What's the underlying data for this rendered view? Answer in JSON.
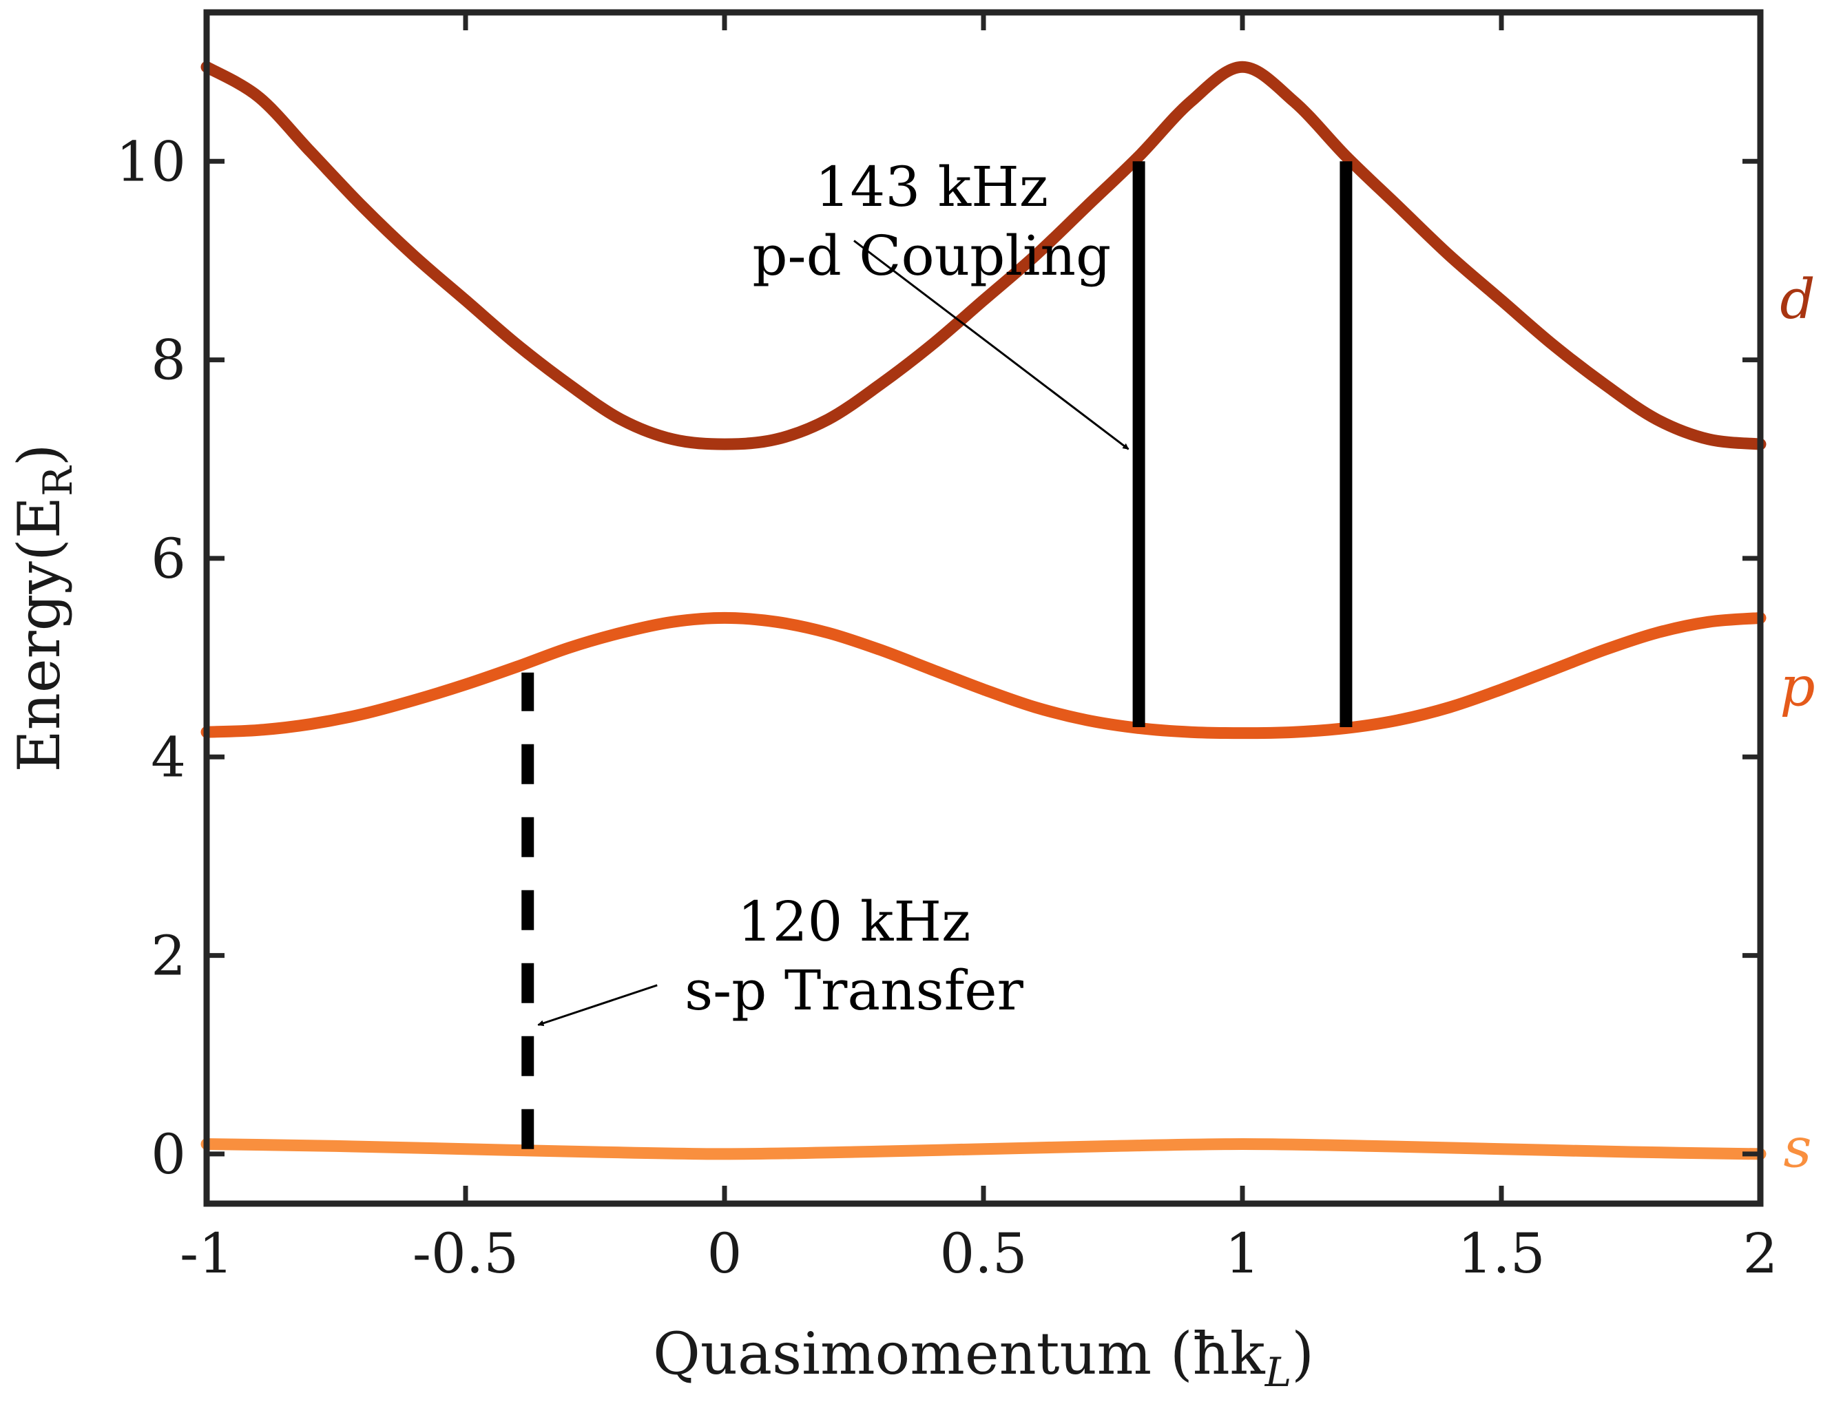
{
  "chart_data": {
    "type": "line",
    "xlabel": "Quasimomentum (ħk",
    "xlabel_sub": "L",
    "xlabel_close": ")",
    "ylabel": "Energy(E",
    "ylabel_sub": "R",
    "ylabel_close": ")",
    "xlim": [
      -1,
      2
    ],
    "ylim": [
      -0.5,
      11.5
    ],
    "x_ticks": [
      -1,
      -0.5,
      0,
      0.5,
      1,
      1.5,
      2
    ],
    "x_tick_labels": [
      "-1",
      "-0.5",
      "0",
      "0.5",
      "1",
      "1.5",
      "2"
    ],
    "y_ticks": [
      0,
      2,
      4,
      6,
      8,
      10
    ],
    "y_tick_labels": [
      "0",
      "2",
      "4",
      "6",
      "8",
      "10"
    ],
    "grid": false,
    "series": [
      {
        "name": "d",
        "color": "#a83511",
        "x": [
          -1,
          -0.9,
          -0.8,
          -0.7,
          -0.6,
          -0.5,
          -0.4,
          -0.3,
          -0.2,
          -0.1,
          0,
          0.1,
          0.2,
          0.3,
          0.4,
          0.5,
          0.6,
          0.7,
          0.8,
          0.9,
          1,
          1.1,
          1.2,
          1.3,
          1.4,
          1.5,
          1.6,
          1.7,
          1.8,
          1.9,
          2
        ],
        "y": [
          10.95,
          10.65,
          10.1,
          9.55,
          9.05,
          8.6,
          8.15,
          7.75,
          7.4,
          7.2,
          7.15,
          7.2,
          7.4,
          7.75,
          8.15,
          8.6,
          9.05,
          9.55,
          10.05,
          10.6,
          10.95,
          10.6,
          10.05,
          9.55,
          9.05,
          8.6,
          8.15,
          7.75,
          7.4,
          7.2,
          7.15
        ]
      },
      {
        "name": "p",
        "color": "#e55a1a",
        "x": [
          -1,
          -0.9,
          -0.8,
          -0.7,
          -0.6,
          -0.5,
          -0.4,
          -0.3,
          -0.2,
          -0.1,
          0,
          0.1,
          0.2,
          0.3,
          0.4,
          0.5,
          0.6,
          0.7,
          0.8,
          0.9,
          1,
          1.1,
          1.2,
          1.3,
          1.4,
          1.5,
          1.6,
          1.7,
          1.8,
          1.9,
          2
        ],
        "y": [
          4.25,
          4.27,
          4.33,
          4.43,
          4.57,
          4.73,
          4.91,
          5.1,
          5.25,
          5.36,
          5.4,
          5.36,
          5.25,
          5.08,
          4.88,
          4.68,
          4.5,
          4.37,
          4.29,
          4.25,
          4.24,
          4.25,
          4.29,
          4.37,
          4.5,
          4.68,
          4.88,
          5.08,
          5.25,
          5.36,
          5.4
        ]
      },
      {
        "name": "s",
        "color": "#f98f3e",
        "x": [
          -1,
          -0.75,
          -0.5,
          -0.25,
          0,
          0.25,
          0.5,
          0.75,
          1,
          1.25,
          1.5,
          1.75,
          2
        ],
        "y": [
          0.1,
          0.08,
          0.05,
          0.02,
          0.0,
          0.02,
          0.05,
          0.08,
          0.1,
          0.08,
          0.05,
          0.02,
          0.0
        ]
      }
    ],
    "transitions": [
      {
        "x": 0.8,
        "y_from": 4.3,
        "y_to": 10.0,
        "style": "solid"
      },
      {
        "x": 1.2,
        "y_from": 4.3,
        "y_to": 10.0,
        "style": "solid"
      },
      {
        "x": -0.38,
        "y_from": 0.05,
        "y_to": 4.85,
        "style": "dashed"
      }
    ],
    "annotations": [
      {
        "lines": [
          "143 kHz",
          "p-d Coupling"
        ],
        "text_x": 0.4,
        "text_y": 9.55,
        "arrow_from": [
          0.25,
          9.2
        ],
        "arrow_to": [
          0.78,
          7.1
        ]
      },
      {
        "lines": [
          "120 kHz",
          "s-p Transfer"
        ],
        "text_x": 0.25,
        "text_y": 2.15,
        "arrow_from": [
          -0.13,
          1.7
        ],
        "arrow_to": [
          -0.36,
          1.3
        ]
      }
    ],
    "band_labels": [
      {
        "text": "d",
        "y": 8.6,
        "color": "#a83511"
      },
      {
        "text": "p",
        "y": 4.7,
        "color": "#e55a1a"
      },
      {
        "text": "s",
        "y": 0.05,
        "color": "#f98f3e"
      }
    ]
  }
}
